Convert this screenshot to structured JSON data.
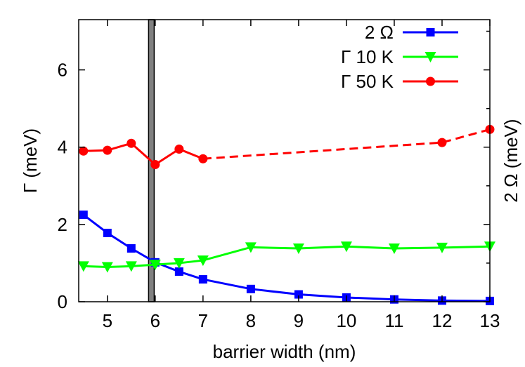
{
  "chart_data": {
    "type": "line",
    "xlabel": "barrier width (nm)",
    "ylabel": "Γ (meV)",
    "y2label": "2 Ω (meV)",
    "xlim": [
      4.4,
      13
    ],
    "ylim": [
      0,
      7.3
    ],
    "xticks": [
      5,
      6,
      7,
      8,
      9,
      10,
      11,
      12,
      13
    ],
    "yticks": [
      0,
      2,
      4,
      6
    ],
    "grid": false,
    "legend_position": "top-right",
    "vertical_band": {
      "x": 5.92,
      "color": "#808080"
    },
    "series": [
      {
        "name": "2 Ω",
        "color": "#0000ff",
        "marker": "square",
        "x": [
          4.5,
          5,
          5.5,
          6,
          6.5,
          7,
          8,
          9,
          10,
          11,
          12,
          13
        ],
        "y": [
          2.25,
          1.78,
          1.38,
          1.02,
          0.78,
          0.58,
          0.33,
          0.19,
          0.11,
          0.06,
          0.03,
          0.02
        ],
        "dashed_from_index": null
      },
      {
        "name": "Γ 10 K",
        "color": "#00ff00",
        "marker": "triangle-down",
        "x": [
          4.5,
          5,
          5.5,
          6,
          6.5,
          7,
          8,
          9,
          10,
          11,
          12,
          13
        ],
        "y": [
          0.92,
          0.9,
          0.92,
          0.96,
          1.0,
          1.07,
          1.41,
          1.38,
          1.43,
          1.38,
          1.4,
          1.43
        ],
        "dashed_from_index": null
      },
      {
        "name": "Γ 50 K",
        "color": "#ff0000",
        "marker": "circle",
        "x": [
          4.5,
          5,
          5.5,
          6,
          6.5,
          7,
          12,
          13
        ],
        "y": [
          3.9,
          3.92,
          4.1,
          3.55,
          3.95,
          3.7,
          4.12,
          4.46
        ],
        "dashed_from_index": 5
      }
    ]
  }
}
